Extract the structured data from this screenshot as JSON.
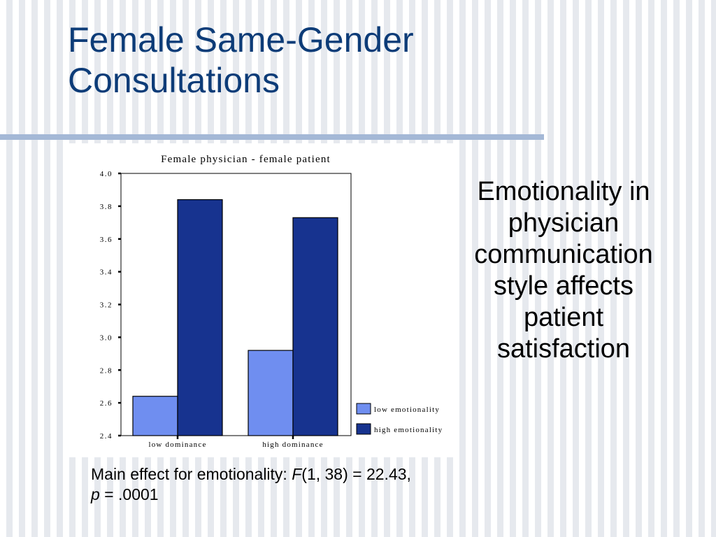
{
  "slide": {
    "title_line1": "Female Same-Gender",
    "title_line2": "Consultations",
    "side_text_lines": [
      "Emotionality in",
      "physician",
      "communication",
      "style affects",
      "patient",
      "satisfaction"
    ],
    "footnote": {
      "prefix": "Main effect for emotionality: ",
      "stat_letter": "F",
      "stat_rest": "(1, 38) = 22.43,",
      "p_letter": "p",
      "p_rest": " = .0001"
    }
  },
  "colors": {
    "title": "#0d3c78",
    "low_emotionality": "#6f8ef0",
    "high_emotionality": "#17338f",
    "rule": "#a4b8d6"
  },
  "chart_data": {
    "type": "bar",
    "title": "Female physician - female patient",
    "categories": [
      "low dominance",
      "high dominance"
    ],
    "series": [
      {
        "name": "low emotionality",
        "values": [
          2.64,
          2.92
        ]
      },
      {
        "name": "high emotionality",
        "values": [
          3.84,
          3.73
        ]
      }
    ],
    "ylim": [
      2.4,
      4.0
    ],
    "yticks": [
      "4.0",
      "3.8",
      "3.6",
      "3.4",
      "3.2",
      "3.0",
      "2.8",
      "2.6",
      "2.4"
    ],
    "xlabel": "",
    "ylabel": "",
    "grid": false,
    "legend_position": "bottom-right"
  }
}
